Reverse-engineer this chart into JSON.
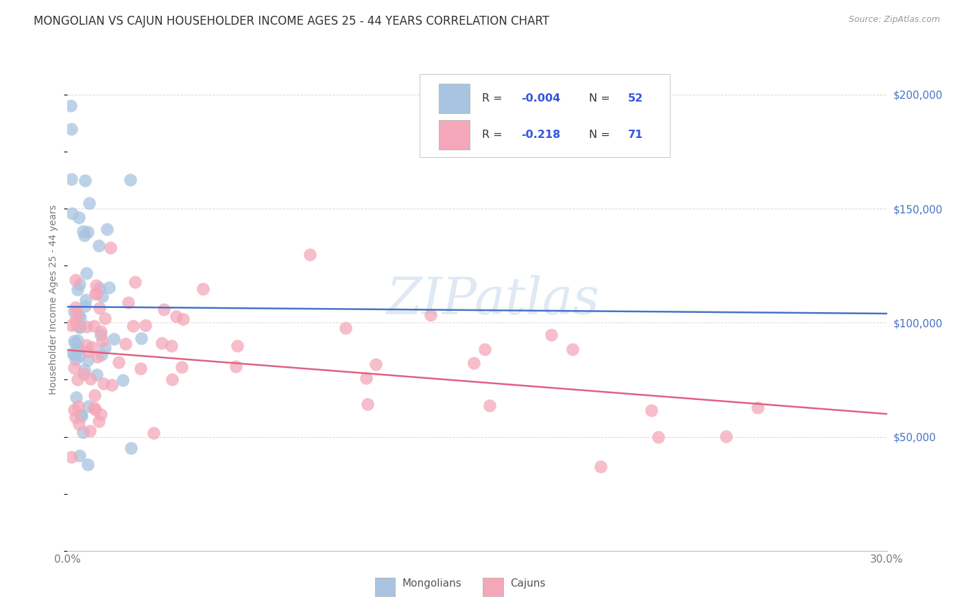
{
  "title": "MONGOLIAN VS CAJUN HOUSEHOLDER INCOME AGES 25 - 44 YEARS CORRELATION CHART",
  "source": "Source: ZipAtlas.com",
  "ylabel": "Householder Income Ages 25 - 44 years",
  "watermark": "ZIPatlas",
  "mongolian_R": "-0.004",
  "mongolian_N": "52",
  "cajun_R": "-0.218",
  "cajun_N": "71",
  "xlim": [
    0.0,
    0.3
  ],
  "ylim": [
    0,
    220000
  ],
  "mongolian_color": "#a8c4e0",
  "mongolian_line_color": "#4472c4",
  "cajun_color": "#f4a7b9",
  "cajun_line_color": "#e06080",
  "background_color": "#ffffff",
  "grid_color": "#cccccc",
  "right_label_color": "#4472c4",
  "legend_text_color": "#333333",
  "legend_value_color": "#3355dd",
  "title_color": "#333333",
  "source_color": "#999999",
  "ylabel_color": "#777777",
  "xtick_color": "#777777",
  "mong_trend_y0": 107000,
  "mong_trend_y1": 104000,
  "cajun_trend_y0": 88000,
  "cajun_trend_y1": 60000
}
